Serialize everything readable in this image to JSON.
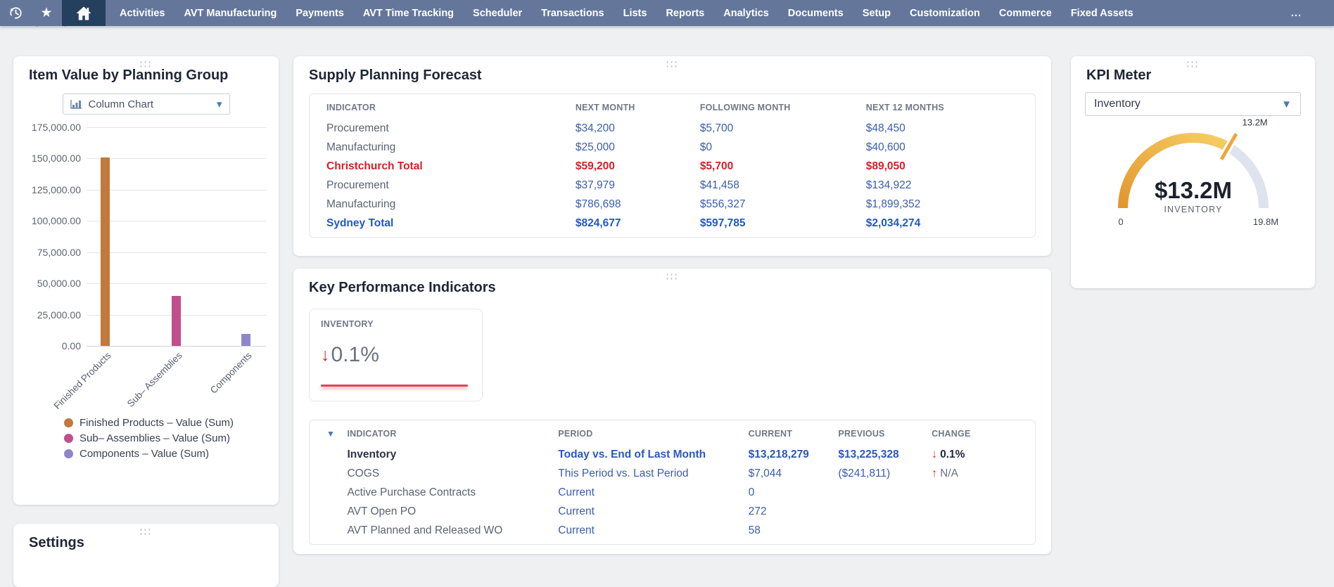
{
  "nav": {
    "items": [
      "Activities",
      "AVT Manufacturing",
      "Payments",
      "AVT Time Tracking",
      "Scheduler",
      "Transactions",
      "Lists",
      "Reports",
      "Analytics",
      "Documents",
      "Setup",
      "Customization",
      "Commerce",
      "Fixed Assets"
    ],
    "more_label": "..."
  },
  "page": {
    "title": "Home"
  },
  "item_value_panel": {
    "title": "Item Value by Planning Group",
    "selector_label": "Column Chart"
  },
  "supply_panel": {
    "title": "Supply Planning Forecast",
    "columns": [
      "INDICATOR",
      "NEXT MONTH",
      "FOLLOWING MONTH",
      "NEXT 12 MONTHS"
    ],
    "rows": [
      {
        "indicator": "Procurement",
        "next_month": "$34,200",
        "following_month": "$5,700",
        "next_12_months": "$48,450",
        "style": "normal"
      },
      {
        "indicator": "Manufacturing",
        "next_month": "$25,000",
        "following_month": "$0",
        "next_12_months": "$40,600",
        "style": "normal"
      },
      {
        "indicator": "Christchurch Total",
        "next_month": "$59,200",
        "following_month": "$5,700",
        "next_12_months": "$89,050",
        "style": "total-red"
      },
      {
        "indicator": "Procurement",
        "next_month": "$37,979",
        "following_month": "$41,458",
        "next_12_months": "$134,922",
        "style": "normal"
      },
      {
        "indicator": "Manufacturing",
        "next_month": "$786,698",
        "following_month": "$556,327",
        "next_12_months": "$1,899,352",
        "style": "normal"
      },
      {
        "indicator": "Sydney Total",
        "next_month": "$824,677",
        "following_month": "$597,785",
        "next_12_months": "$2,034,274",
        "style": "total-blue"
      }
    ]
  },
  "kpi_panel": {
    "title": "Key Performance Indicators",
    "tile": {
      "label": "INVENTORY",
      "change": "0.1%",
      "direction": "down"
    },
    "columns": [
      "INDICATOR",
      "PERIOD",
      "CURRENT",
      "PREVIOUS",
      "CHANGE"
    ],
    "rows": [
      {
        "indicator": "Inventory",
        "period": "Today vs. End of Last Month",
        "current": "$13,218,279",
        "previous": "$13,225,328",
        "change": "0.1%",
        "direction": "down",
        "emphasis": true
      },
      {
        "indicator": "COGS",
        "period": "This Period vs. Last Period",
        "current": "$7,044",
        "previous": "($241,811)",
        "change": "N/A",
        "direction": "up",
        "emphasis": false
      },
      {
        "indicator": "Active Purchase Contracts",
        "period": "Current",
        "current": "0",
        "previous": "",
        "change": "",
        "direction": "",
        "emphasis": false
      },
      {
        "indicator": "AVT Open PO",
        "period": "Current",
        "current": "272",
        "previous": "",
        "change": "",
        "direction": "",
        "emphasis": false
      },
      {
        "indicator": "AVT Planned and Released WO",
        "period": "Current",
        "current": "58",
        "previous": "",
        "change": "",
        "direction": "",
        "emphasis": false
      }
    ]
  },
  "kpi_meter_panel": {
    "title": "KPI Meter",
    "selector_value": "Inventory",
    "center_value": "$13.2M",
    "center_label": "INVENTORY",
    "needle_label": "13.2M",
    "min_label": "0",
    "max_label": "19.8M"
  },
  "settings_panel": {
    "title": "Settings"
  },
  "chart_data": [
    {
      "type": "bar",
      "title": "Item Value by Planning Group",
      "categories": [
        "Finished Products",
        "Sub– Assemblies",
        "Components"
      ],
      "series": [
        {
          "name": "Value (Sum)",
          "values": [
            151000,
            39800,
            9500
          ]
        }
      ],
      "bar_colors": [
        "#c2793c",
        "#c04f8b",
        "#8d86cd"
      ],
      "xlabel": "",
      "ylabel": "",
      "ylim": [
        0,
        175000
      ],
      "ytick_step": 25000,
      "grid": true,
      "legend_position": "bottom",
      "legend": [
        "Finished Products – Value (Sum)",
        "Sub– Assemblies – Value (Sum)",
        "Components – Value (Sum)"
      ]
    },
    {
      "type": "gauge",
      "title": "KPI Meter",
      "metric": "INVENTORY",
      "value": 13200000,
      "min": 0,
      "max": 19800000,
      "display_value": "$13.2M",
      "min_label": "0",
      "max_label": "19.8M",
      "needle_label": "13.2M"
    }
  ],
  "colors": {
    "nav_bar": "#64779b",
    "nav_active_tile": "#24405e",
    "link_blue": "#3a5dab",
    "total_blue": "#2257c5",
    "total_red": "#d32029",
    "change_red": "#d7263a",
    "gauge_track": "#dee4ee",
    "gauge_arc_start": "#e3952d",
    "gauge_arc_end": "#f6cf63"
  }
}
